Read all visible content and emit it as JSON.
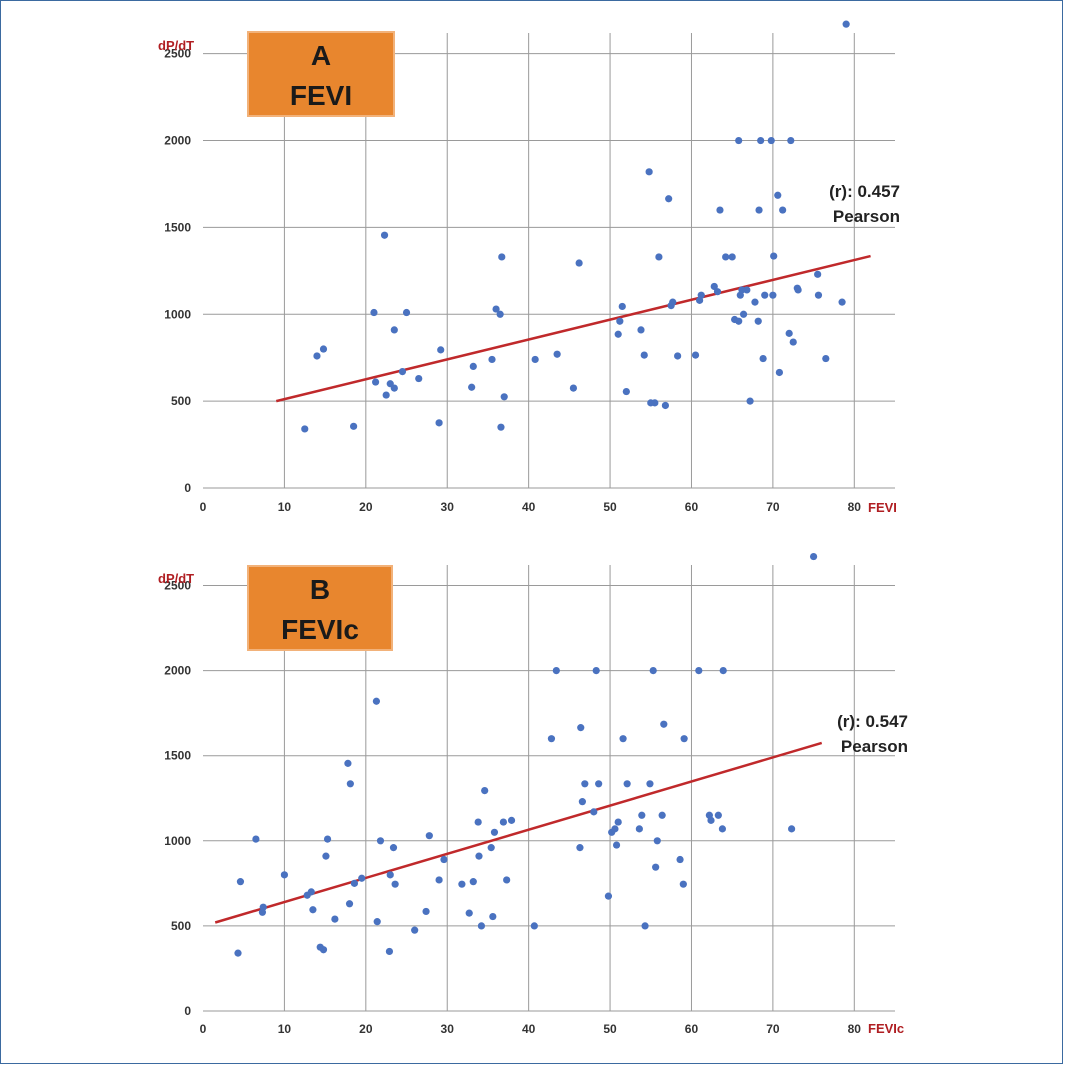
{
  "colors": {
    "grid": "#9a9a9a",
    "point": "#4a72c0",
    "trend": "#c0292b",
    "label_box": "#e8862e",
    "axis_label": "#b01e22"
  },
  "chart_data": [
    {
      "type": "scatter",
      "panel_letter": "A",
      "panel_title": "FEVI",
      "ylabel": "dP/dT",
      "xlabel": "FEVI",
      "xlim": [
        0,
        85
      ],
      "ylim": [
        0,
        2550
      ],
      "x_ticks": [
        "0",
        "10",
        "20",
        "30",
        "40",
        "50",
        "60",
        "70",
        "80"
      ],
      "y_ticks": [
        "0",
        "500",
        "1000",
        "1500",
        "2000",
        "2500"
      ],
      "grid": true,
      "annotation_line1": "(r): 0.457",
      "annotation_line2": "Pearson",
      "trendline": {
        "x": [
          9,
          82
        ],
        "y": [
          500,
          1335
        ]
      },
      "points": [
        [
          12.5,
          340
        ],
        [
          14,
          760
        ],
        [
          14.8,
          800
        ],
        [
          18.5,
          355
        ],
        [
          21,
          1010
        ],
        [
          21.2,
          610
        ],
        [
          22.3,
          1455
        ],
        [
          22.5,
          535
        ],
        [
          23,
          600
        ],
        [
          23.5,
          575
        ],
        [
          23.5,
          910
        ],
        [
          24.5,
          670
        ],
        [
          25,
          1010
        ],
        [
          26.5,
          630
        ],
        [
          29,
          375
        ],
        [
          29.2,
          795
        ],
        [
          33,
          580
        ],
        [
          33.2,
          700
        ],
        [
          35.5,
          740
        ],
        [
          36,
          1030
        ],
        [
          36.5,
          1000
        ],
        [
          36.6,
          350
        ],
        [
          36.7,
          1330
        ],
        [
          37,
          525
        ],
        [
          40.8,
          740
        ],
        [
          43.5,
          770
        ],
        [
          45.5,
          575
        ],
        [
          46.2,
          1295
        ],
        [
          51,
          885
        ],
        [
          51.2,
          960
        ],
        [
          51.5,
          1045
        ],
        [
          52,
          555
        ],
        [
          53.8,
          910
        ],
        [
          54.2,
          765
        ],
        [
          54.8,
          1820
        ],
        [
          55,
          490
        ],
        [
          55.5,
          490
        ],
        [
          56,
          1330
        ],
        [
          56.8,
          475
        ],
        [
          57.2,
          1665
        ],
        [
          57.5,
          1050
        ],
        [
          57.7,
          1070
        ],
        [
          58.3,
          760
        ],
        [
          60.5,
          765
        ],
        [
          61,
          1080
        ],
        [
          61.2,
          1110
        ],
        [
          62.8,
          1160
        ],
        [
          63.2,
          1130
        ],
        [
          63.5,
          1600
        ],
        [
          64.2,
          1330
        ],
        [
          65,
          1330
        ],
        [
          65.3,
          970
        ],
        [
          65.8,
          2000
        ],
        [
          65.8,
          960
        ],
        [
          66,
          1110
        ],
        [
          66.2,
          1140
        ],
        [
          66.4,
          1000
        ],
        [
          66.8,
          1140
        ],
        [
          67.2,
          500
        ],
        [
          67.8,
          1070
        ],
        [
          68.2,
          960
        ],
        [
          68.3,
          1600
        ],
        [
          68.5,
          2000
        ],
        [
          68.8,
          745
        ],
        [
          69,
          1110
        ],
        [
          69.8,
          2000
        ],
        [
          70,
          1110
        ],
        [
          70.1,
          1335
        ],
        [
          70.6,
          1685
        ],
        [
          70.8,
          665
        ],
        [
          71.2,
          1600
        ],
        [
          72,
          890
        ],
        [
          72.2,
          2000
        ],
        [
          72.5,
          840
        ],
        [
          73,
          1150
        ],
        [
          73.1,
          1140
        ],
        [
          75.5,
          1230
        ],
        [
          75.6,
          1110
        ],
        [
          76.5,
          745
        ],
        [
          78.5,
          1070
        ],
        [
          79,
          2670
        ]
      ]
    },
    {
      "type": "scatter",
      "panel_letter": "B",
      "panel_title": "FEVIc",
      "ylabel": "dP/dT",
      "xlabel": "FEVIc",
      "xlim": [
        0,
        85
      ],
      "ylim": [
        0,
        2550
      ],
      "x_ticks": [
        "0",
        "10",
        "20",
        "30",
        "40",
        "50",
        "60",
        "70",
        "80"
      ],
      "y_ticks": [
        "0",
        "500",
        "1000",
        "1500",
        "2000",
        "2500"
      ],
      "grid": true,
      "annotation_line1": "(r): 0.547",
      "annotation_line2": "Pearson",
      "trendline": {
        "x": [
          1.5,
          76
        ],
        "y": [
          520,
          1575
        ]
      },
      "points": [
        [
          4.3,
          340
        ],
        [
          4.6,
          760
        ],
        [
          6.5,
          1010
        ],
        [
          7.3,
          580
        ],
        [
          7.4,
          610
        ],
        [
          10,
          800
        ],
        [
          12.8,
          680
        ],
        [
          13.3,
          700
        ],
        [
          13.5,
          595
        ],
        [
          14.4,
          375
        ],
        [
          14.8,
          360
        ],
        [
          15.1,
          910
        ],
        [
          15.3,
          1010
        ],
        [
          16.2,
          540
        ],
        [
          17.8,
          1455
        ],
        [
          18,
          630
        ],
        [
          18.1,
          1335
        ],
        [
          18.6,
          750
        ],
        [
          19.5,
          780
        ],
        [
          21.3,
          1820
        ],
        [
          21.4,
          525
        ],
        [
          21.8,
          1000
        ],
        [
          22.9,
          350
        ],
        [
          23,
          800
        ],
        [
          23.4,
          960
        ],
        [
          23.6,
          745
        ],
        [
          26,
          475
        ],
        [
          27.4,
          585
        ],
        [
          27.8,
          1030
        ],
        [
          29,
          770
        ],
        [
          29.6,
          890
        ],
        [
          31.8,
          745
        ],
        [
          32.7,
          575
        ],
        [
          33.2,
          760
        ],
        [
          33.8,
          1110
        ],
        [
          33.9,
          910
        ],
        [
          34.2,
          500
        ],
        [
          34.6,
          1295
        ],
        [
          35.4,
          960
        ],
        [
          35.6,
          555
        ],
        [
          35.8,
          1050
        ],
        [
          36.9,
          1110
        ],
        [
          37.3,
          770
        ],
        [
          37.9,
          1120
        ],
        [
          40.7,
          500
        ],
        [
          42.8,
          1600
        ],
        [
          43.4,
          2000
        ],
        [
          46.3,
          960
        ],
        [
          46.4,
          1665
        ],
        [
          46.6,
          1230
        ],
        [
          46.9,
          1335
        ],
        [
          48,
          1170
        ],
        [
          48.3,
          2000
        ],
        [
          48.6,
          1335
        ],
        [
          49.8,
          675
        ],
        [
          50.2,
          1050
        ],
        [
          50.6,
          1070
        ],
        [
          50.8,
          975
        ],
        [
          51,
          1110
        ],
        [
          51.6,
          1600
        ],
        [
          52.1,
          1335
        ],
        [
          53.6,
          1070
        ],
        [
          53.9,
          1150
        ],
        [
          54.3,
          500
        ],
        [
          54.9,
          1335
        ],
        [
          55.3,
          2000
        ],
        [
          55.6,
          845
        ],
        [
          55.8,
          1000
        ],
        [
          56.4,
          1150
        ],
        [
          56.6,
          1685
        ],
        [
          58.6,
          890
        ],
        [
          59,
          745
        ],
        [
          59.1,
          1600
        ],
        [
          60.9,
          2000
        ],
        [
          62.2,
          1150
        ],
        [
          62.4,
          1120
        ],
        [
          63.3,
          1150
        ],
        [
          63.8,
          1070
        ],
        [
          63.9,
          2000
        ],
        [
          72.3,
          1070
        ],
        [
          75,
          2670
        ]
      ]
    }
  ]
}
